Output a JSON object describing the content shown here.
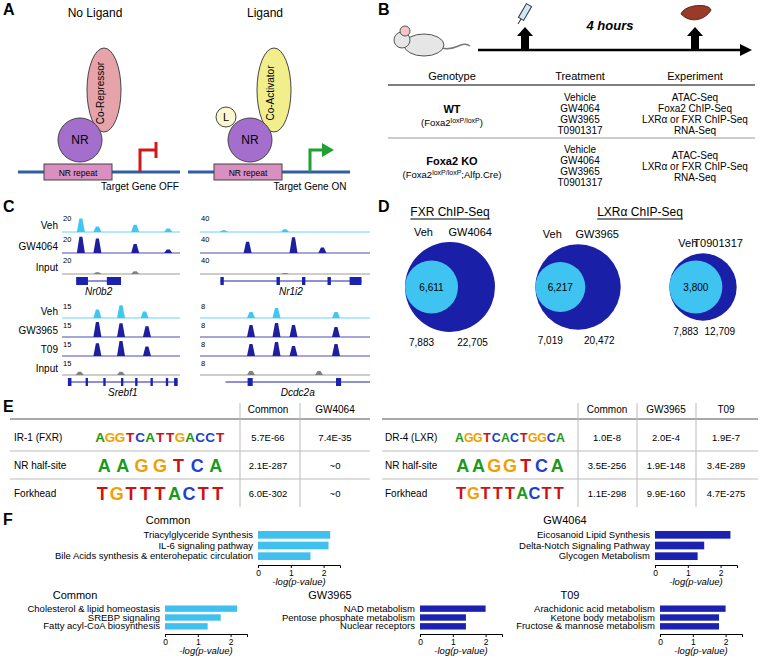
{
  "panels": {
    "A": {
      "letter": "A",
      "left": {
        "title": "No Ligand",
        "nr": "NR",
        "cofactor": "Co-Repressor",
        "repeat": "NR repeat",
        "gene": "Target Gene OFF"
      },
      "right": {
        "title": "Ligand",
        "ligand": "L",
        "nr": "NR",
        "cofactor": "Co-Activator",
        "repeat": "NR repeat",
        "gene": "Target Gene ON"
      }
    },
    "B": {
      "letter": "B",
      "duration": "4 hours",
      "headers": [
        "Genotype",
        "Treatment",
        "Experiment"
      ],
      "rows": [
        {
          "genotype": "WT",
          "detail": [
            {
              "text": "(Foxa2"
            },
            {
              "text": "loxP/loxP",
              "sup": true
            },
            {
              "text": ")"
            }
          ],
          "treatments": [
            "Vehicle",
            "GW4064",
            "GW3965",
            "T0901317"
          ],
          "experiments": [
            "ATAC-Seq",
            "Foxa2 ChIP-Seq",
            "LXRα or FXR ChIP-Seq",
            "RNA-Seq"
          ]
        },
        {
          "genotype": "Foxa2 KO",
          "detail": [
            {
              "text": "(Foxa2"
            },
            {
              "text": "loxP/loxP",
              "sup": true
            },
            {
              "text": ";Alfp.Cre)"
            }
          ],
          "treatments": [
            "Vehicle",
            "GW4064",
            "GW3965",
            "T0901317"
          ],
          "experiments": [
            "ATAC-Seq",
            "LXRα or FXR ChIP-Seq",
            "RNA-Seq"
          ]
        }
      ]
    },
    "C": {
      "letter": "C",
      "groups": [
        {
          "gene": {
            "name": "Nr0b2",
            "span": [
              0.12,
              0.5
            ],
            "exons": [
              [
                0.12,
                0.22
              ],
              [
                0.38,
                0.5
              ]
            ]
          },
          "tracks": [
            {
              "label": "Veh",
              "scale": 20,
              "color": "#3fc6f2",
              "peaks": [
                [
                  0.16,
                  15
                ],
                [
                  0.3,
                  6
                ],
                [
                  0.62,
                  8
                ],
                [
                  0.9,
                  4
                ]
              ]
            },
            {
              "label": "GW4064",
              "scale": 20,
              "color": "#1e1e9e",
              "peaks": [
                [
                  0.16,
                  18
                ],
                [
                  0.3,
                  16
                ],
                [
                  0.62,
                  10
                ],
                [
                  0.9,
                  4
                ]
              ]
            },
            {
              "label": "Input",
              "scale": 20,
              "color": "#808080",
              "peaks": [
                [
                  0.3,
                  2
                ],
                [
                  0.62,
                  3
                ]
              ]
            }
          ]
        },
        {
          "gene": {
            "name": "Nr1i2",
            "span": [
              0.12,
              0.95
            ],
            "exons": [
              [
                0.12,
                0.14
              ],
              [
                0.45,
                0.47
              ],
              [
                0.6,
                0.62
              ],
              [
                0.75,
                0.77
              ],
              [
                0.88,
                0.95
              ]
            ]
          },
          "tracks": [
            {
              "scale": 40,
              "color": "#3fc6f2",
              "peaks": [
                [
                  0.14,
                  4
                ],
                [
                  0.5,
                  6
                ]
              ]
            },
            {
              "scale": 40,
              "color": "#1e1e9e",
              "peaks": [
                [
                  0.28,
                  25
                ],
                [
                  0.55,
                  35
                ],
                [
                  0.72,
                  12
                ]
              ]
            },
            {
              "scale": 40,
              "color": "#808080",
              "peaks": [
                [
                  0.5,
                  2
                ]
              ]
            }
          ]
        },
        {
          "gene": {
            "name": "Srebf1",
            "span": [
              0.05,
              0.98
            ],
            "exons": [
              [
                0.05,
                0.08
              ],
              [
                0.2,
                0.22
              ],
              [
                0.35,
                0.37
              ],
              [
                0.5,
                0.52
              ],
              [
                0.62,
                0.64
              ],
              [
                0.75,
                0.77
              ],
              [
                0.88,
                0.9
              ],
              [
                0.95,
                0.98
              ]
            ]
          },
          "tracks": [
            {
              "label": "Veh",
              "scale": 15,
              "color": "#3fc6f2",
              "peaks": [
                [
                  0.3,
                  8
                ],
                [
                  0.5,
                  12
                ],
                [
                  0.7,
                  6
                ]
              ]
            },
            {
              "label": "GW3965",
              "scale": 15,
              "color": "#1e1e9e",
              "peaks": [
                [
                  0.3,
                  14
                ],
                [
                  0.5,
                  13
                ],
                [
                  0.72,
                  10
                ]
              ]
            },
            {
              "label": "T09",
              "scale": 15,
              "color": "#1e1e9e",
              "peaks": [
                [
                  0.3,
                  12
                ],
                [
                  0.5,
                  14
                ],
                [
                  0.72,
                  9
                ]
              ]
            },
            {
              "label": "Input",
              "scale": 15,
              "color": "#808080",
              "peaks": [
                [
                  0.15,
                  3
                ],
                [
                  0.5,
                  3
                ]
              ]
            }
          ]
        },
        {
          "gene": {
            "name": "Dcdc2a",
            "span": [
              0.15,
              1.0
            ],
            "exons": [
              [
                0.28,
                0.31
              ],
              [
                0.8,
                0.83
              ]
            ]
          },
          "tracks": [
            {
              "scale": 8,
              "color": "#3fc6f2",
              "peaks": [
                [
                  0.3,
                  3
                ],
                [
                  0.45,
                  5
                ],
                [
                  0.8,
                  3
                ]
              ]
            },
            {
              "scale": 8,
              "color": "#1e1e9e",
              "peaks": [
                [
                  0.3,
                  6
                ],
                [
                  0.45,
                  7
                ],
                [
                  0.55,
                  6
                ],
                [
                  0.8,
                  5
                ]
              ]
            },
            {
              "scale": 8,
              "color": "#1e1e9e",
              "peaks": [
                [
                  0.3,
                  6
                ],
                [
                  0.45,
                  7
                ],
                [
                  0.55,
                  5
                ],
                [
                  0.8,
                  6
                ]
              ]
            },
            {
              "scale": 8,
              "color": "#808080",
              "peaks": [
                [
                  0.3,
                  2
                ],
                [
                  0.7,
                  2
                ]
              ]
            }
          ]
        }
      ]
    },
    "D": {
      "letter": "D",
      "titles": [
        "FXR ChIP-Seq",
        "LXRα ChIP-Seq"
      ],
      "venns": [
        {
          "veh_label": "Veh",
          "ligand_label": "GW4064",
          "overlap": "6,611",
          "veh_total": {
            "value": 7883,
            "label": "7,883"
          },
          "ligand_total": {
            "value": 22705,
            "label": "22,705"
          }
        },
        {
          "veh_label": "Veh",
          "ligand_label": "GW3965",
          "overlap": "6,217",
          "veh_total": {
            "value": 7019,
            "label": "7,019"
          },
          "ligand_total": {
            "value": 20472,
            "label": "20,472"
          }
        },
        {
          "veh_label": "Veh",
          "ligand_label": "T0901317",
          "overlap": "3,800",
          "veh_total": {
            "value": 7883,
            "label": "7,883"
          },
          "ligand_total": {
            "value": 12709,
            "label": "12,709"
          }
        }
      ]
    },
    "E": {
      "letter": "E",
      "tables": [
        {
          "columns": [
            "Common",
            "GW4064"
          ],
          "rows": [
            {
              "name": "IR-1 (FXR)",
              "motif": "AGGTCATTGACCT",
              "values": [
                "5.7E-66",
                "7.4E-35"
              ]
            },
            {
              "name": "NR half-site",
              "motif": "AAGGTCA",
              "values": [
                "2.1E-287",
                "~0"
              ]
            },
            {
              "name": "Forkhead",
              "motif": "TGTTTACTT",
              "values": [
                "6.0E-302",
                "~0"
              ]
            }
          ]
        },
        {
          "columns": [
            "Common",
            "GW3965",
            "T09"
          ],
          "rows": [
            {
              "name": "DR-4 (LXR)",
              "motif": "AGGTCACTGGCA",
              "values": [
                "1.0E-8",
                "2.0E-4",
                "1.9E-7"
              ]
            },
            {
              "name": "NR half-site",
              "motif": "AAGGTCA",
              "values": [
                "3.5E-256",
                "1.9E-148",
                "3.4E-289"
              ]
            },
            {
              "name": "Forkhead",
              "motif": "TGTTTACTT",
              "values": [
                "1.1E-298",
                "9.9E-160",
                "4.7E-275"
              ]
            }
          ]
        }
      ]
    },
    "F": {
      "letter": "F"
    }
  },
  "chart_data": [
    {
      "type": "bar",
      "orientation": "horizontal",
      "title": "Common",
      "categories": [
        "Triacylglyceride Synthesis",
        "IL-6 signaling pathway",
        "Bile Acids synthesis & enterohepatic circulation"
      ],
      "values": [
        2.2,
        2.15,
        1.6
      ],
      "color": "#40c0ee",
      "xlim": [
        0,
        2.5
      ],
      "xticks": [
        0,
        1,
        2
      ],
      "xlabel": "-log(p-value)"
    },
    {
      "type": "bar",
      "orientation": "horizontal",
      "title": "GW4064",
      "categories": [
        "Eicosanoid Lipid Synthesis",
        "Delta-Notch Signaling Pathway",
        "Glycogen Metabolism"
      ],
      "values": [
        2.3,
        1.5,
        1.3
      ],
      "color": "#1c22b0",
      "xlim": [
        0,
        2.5
      ],
      "xticks": [
        0,
        1,
        2
      ],
      "xlabel": "-log(p-value)"
    },
    {
      "type": "bar",
      "orientation": "horizontal",
      "title": "Common",
      "categories": [
        "Cholesterol & lipid homeostasis",
        "SREBP signaling",
        "Fatty acyl-CoA biosynthesis"
      ],
      "values": [
        2.2,
        1.7,
        1.3
      ],
      "color": "#40c0ee",
      "xlim": [
        0,
        2.5
      ],
      "xticks": [
        0,
        1,
        2
      ],
      "xlabel": "-log(p-value)"
    },
    {
      "type": "bar",
      "orientation": "horizontal",
      "title": "GW3965",
      "categories": [
        "NAD metabolism",
        "Pentose phosphate metabolism",
        "Nuclear receptors"
      ],
      "values": [
        2.0,
        1.4,
        1.4
      ],
      "color": "#1c22b0",
      "xlim": [
        0,
        2.5
      ],
      "xticks": [
        0,
        1,
        2
      ],
      "xlabel": "-log(p-value)"
    },
    {
      "type": "bar",
      "orientation": "horizontal",
      "title": "T09",
      "categories": [
        "Arachidonic acid metabolism",
        "Ketone body metabolism",
        "Fructose & mannose metabolism"
      ],
      "values": [
        2.0,
        1.8,
        1.8
      ],
      "color": "#1c22b0",
      "xlim": [
        0,
        2.5
      ],
      "xticks": [
        0,
        1,
        2
      ],
      "xlabel": "-log(p-value)"
    }
  ]
}
